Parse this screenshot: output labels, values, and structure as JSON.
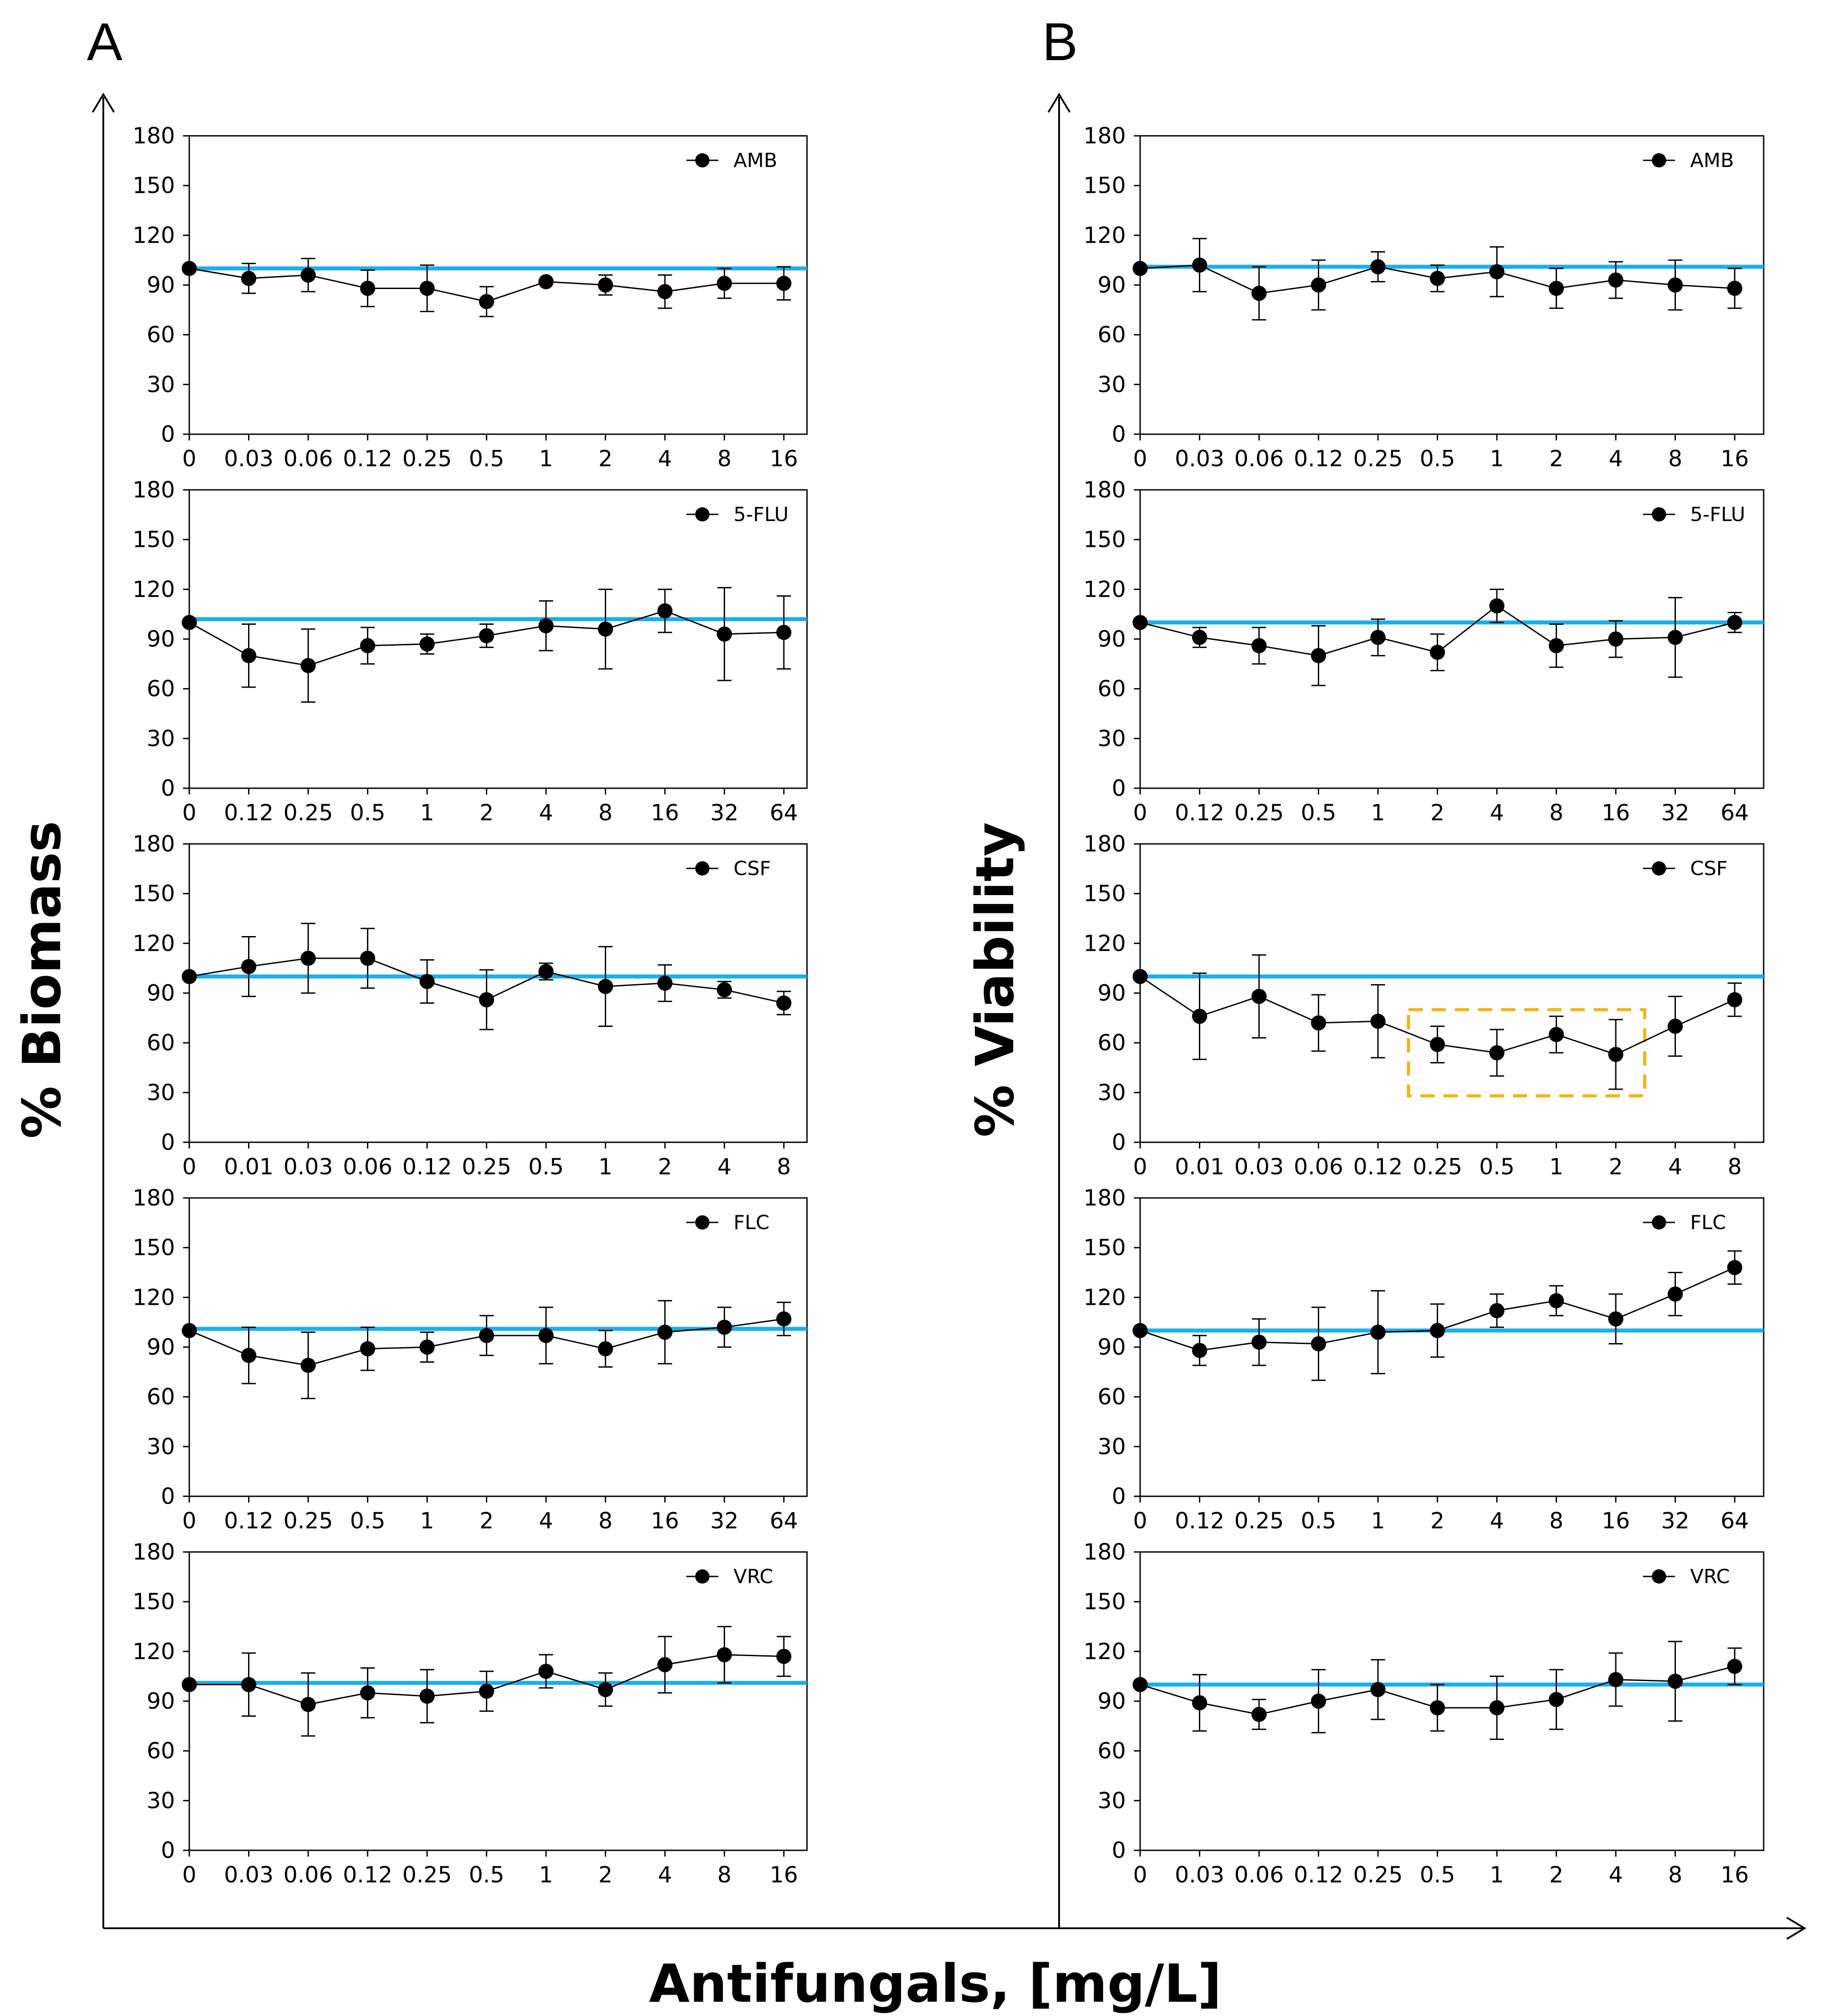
{
  "figure": {
    "panel_labels": [
      "A",
      "B"
    ],
    "y_titles": [
      "% Biomass",
      "% Viability"
    ],
    "x_title": "Antifungals, [mg/L]",
    "colors": {
      "reference_line": "#1ab0e8",
      "highlight_box": "#f2b50f",
      "series": "#000000"
    }
  },
  "chart_data": [
    {
      "panel": "A",
      "type": "line",
      "legend": "AMB",
      "xlabel": "",
      "ylabel": "",
      "ylim": [
        0,
        180
      ],
      "yticks": [
        0,
        30,
        60,
        90,
        120,
        150,
        180
      ],
      "reference_line": 100,
      "grid": false,
      "legend_position": "top-right",
      "categories": [
        "0",
        "0.03",
        "0.06",
        "0.12",
        "0.25",
        "0.5",
        "1",
        "2",
        "4",
        "8",
        "16"
      ],
      "values": [
        100,
        94,
        96,
        88,
        88,
        80,
        92,
        90,
        86,
        91,
        91
      ],
      "errors": [
        0,
        9,
        10,
        11,
        14,
        9,
        0,
        6,
        10,
        9,
        10
      ]
    },
    {
      "panel": "A",
      "type": "line",
      "legend": "5-FLU",
      "xlabel": "",
      "ylabel": "",
      "ylim": [
        0,
        180
      ],
      "yticks": [
        0,
        30,
        60,
        90,
        120,
        150,
        180
      ],
      "reference_line": 102,
      "grid": false,
      "legend_position": "top-right",
      "categories": [
        "0",
        "0.12",
        "0.25",
        "0.5",
        "1",
        "2",
        "4",
        "8",
        "16",
        "32",
        "64"
      ],
      "values": [
        100,
        80,
        74,
        86,
        87,
        92,
        98,
        96,
        107,
        93,
        94
      ],
      "errors": [
        0,
        19,
        22,
        11,
        6,
        7,
        15,
        24,
        13,
        28,
        22
      ]
    },
    {
      "panel": "A",
      "type": "line",
      "legend": "CSF",
      "xlabel": "",
      "ylabel": "",
      "ylim": [
        0,
        180
      ],
      "yticks": [
        0,
        30,
        60,
        90,
        120,
        150,
        180
      ],
      "reference_line": 100,
      "grid": false,
      "legend_position": "top-right",
      "categories": [
        "0",
        "0.01",
        "0.03",
        "0.06",
        "0.12",
        "0.25",
        "0.5",
        "1",
        "2",
        "4",
        "8"
      ],
      "values": [
        100,
        106,
        111,
        111,
        97,
        86,
        103,
        94,
        96,
        92,
        84
      ],
      "errors": [
        0,
        18,
        21,
        18,
        13,
        18,
        5,
        24,
        11,
        5,
        7
      ]
    },
    {
      "panel": "A",
      "type": "line",
      "legend": "FLC",
      "xlabel": "",
      "ylabel": "",
      "ylim": [
        0,
        180
      ],
      "yticks": [
        0,
        30,
        60,
        90,
        120,
        150,
        180
      ],
      "reference_line": 101,
      "grid": false,
      "legend_position": "top-right",
      "categories": [
        "0",
        "0.12",
        "0.25",
        "0.5",
        "1",
        "2",
        "4",
        "8",
        "16",
        "32",
        "64"
      ],
      "values": [
        100,
        85,
        79,
        89,
        90,
        97,
        97,
        89,
        99,
        102,
        107
      ],
      "errors": [
        0,
        17,
        20,
        13,
        9,
        12,
        17,
        11,
        19,
        12,
        10
      ]
    },
    {
      "panel": "A",
      "type": "line",
      "legend": "VRC",
      "xlabel": "",
      "ylabel": "",
      "ylim": [
        0,
        180
      ],
      "yticks": [
        0,
        30,
        60,
        90,
        120,
        150,
        180
      ],
      "reference_line": 101,
      "grid": false,
      "legend_position": "top-right",
      "categories": [
        "0",
        "0.03",
        "0.06",
        "0.12",
        "0.25",
        "0.5",
        "1",
        "2",
        "4",
        "8",
        "16"
      ],
      "values": [
        100,
        100,
        88,
        95,
        93,
        96,
        108,
        97,
        112,
        118,
        117
      ],
      "errors": [
        0,
        19,
        19,
        15,
        16,
        12,
        10,
        10,
        17,
        17,
        12
      ]
    },
    {
      "panel": "B",
      "type": "line",
      "legend": "AMB",
      "xlabel": "",
      "ylabel": "",
      "ylim": [
        0,
        180
      ],
      "yticks": [
        0,
        30,
        60,
        90,
        120,
        150,
        180
      ],
      "reference_line": 101,
      "grid": false,
      "legend_position": "top-right",
      "categories": [
        "0",
        "0.03",
        "0.06",
        "0.12",
        "0.25",
        "0.5",
        "1",
        "2",
        "4",
        "8",
        "16"
      ],
      "values": [
        100,
        102,
        85,
        90,
        101,
        94,
        98,
        88,
        93,
        90,
        88
      ],
      "errors": [
        0,
        16,
        16,
        15,
        9,
        8,
        15,
        12,
        11,
        15,
        12
      ]
    },
    {
      "panel": "B",
      "type": "line",
      "legend": "5-FLU",
      "xlabel": "",
      "ylabel": "",
      "ylim": [
        0,
        180
      ],
      "yticks": [
        0,
        30,
        60,
        90,
        120,
        150,
        180
      ],
      "reference_line": 100,
      "grid": false,
      "legend_position": "top-right",
      "categories": [
        "0",
        "0.12",
        "0.25",
        "0.5",
        "1",
        "2",
        "4",
        "8",
        "16",
        "32",
        "64"
      ],
      "values": [
        100,
        91,
        86,
        80,
        91,
        82,
        110,
        86,
        90,
        91,
        100
      ],
      "errors": [
        0,
        6,
        11,
        18,
        11,
        11,
        10,
        13,
        11,
        24,
        6
      ]
    },
    {
      "panel": "B",
      "type": "line",
      "legend": "CSF",
      "xlabel": "",
      "ylabel": "",
      "ylim": [
        0,
        180
      ],
      "yticks": [
        0,
        30,
        60,
        90,
        120,
        150,
        180
      ],
      "reference_line": 100,
      "grid": false,
      "legend_position": "top-right",
      "categories": [
        "0",
        "0.01",
        "0.03",
        "0.06",
        "0.12",
        "0.25",
        "0.5",
        "1",
        "2",
        "4",
        "8"
      ],
      "values": [
        100,
        76,
        88,
        72,
        73,
        59,
        54,
        65,
        53,
        70,
        86
      ],
      "errors": [
        0,
        26,
        25,
        17,
        22,
        11,
        14,
        11,
        21,
        18,
        10
      ],
      "highlight_range": {
        "from": "0.25",
        "to": "2",
        "ylim": [
          28,
          80
        ]
      }
    },
    {
      "panel": "B",
      "type": "line",
      "legend": "FLC",
      "xlabel": "",
      "ylabel": "",
      "ylim": [
        0,
        180
      ],
      "yticks": [
        0,
        30,
        60,
        90,
        120,
        150,
        180
      ],
      "reference_line": 100,
      "grid": false,
      "legend_position": "top-right",
      "categories": [
        "0",
        "0.12",
        "0.25",
        "0.5",
        "1",
        "2",
        "4",
        "8",
        "16",
        "32",
        "64"
      ],
      "values": [
        100,
        88,
        93,
        92,
        99,
        100,
        112,
        118,
        107,
        122,
        138
      ],
      "errors": [
        0,
        9,
        14,
        22,
        25,
        16,
        10,
        9,
        15,
        13,
        10
      ]
    },
    {
      "panel": "B",
      "type": "line",
      "legend": "VRC",
      "xlabel": "",
      "ylabel": "",
      "ylim": [
        0,
        180
      ],
      "yticks": [
        0,
        30,
        60,
        90,
        120,
        150,
        180
      ],
      "reference_line": 100,
      "grid": false,
      "legend_position": "top-right",
      "categories": [
        "0",
        "0.03",
        "0.06",
        "0.12",
        "0.25",
        "0.5",
        "1",
        "2",
        "4",
        "8",
        "16"
      ],
      "values": [
        100,
        89,
        82,
        90,
        97,
        86,
        86,
        91,
        103,
        102,
        111
      ],
      "errors": [
        0,
        17,
        9,
        19,
        18,
        14,
        19,
        18,
        16,
        24,
        11
      ]
    }
  ]
}
